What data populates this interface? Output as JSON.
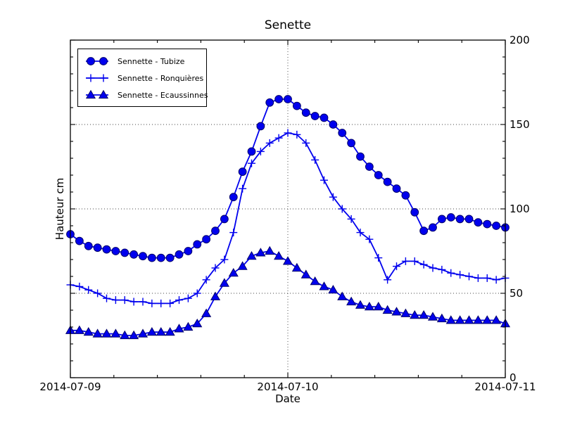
{
  "chart_data": {
    "type": "line",
    "title": "Senette",
    "xlabel": "Date",
    "ylabel": "Hauteur cm",
    "x_tick_labels": [
      "2014-07-09",
      "2014-07-10",
      "2014-07-11"
    ],
    "y_tick_labels": [
      "0",
      "50",
      "100",
      "150",
      "200"
    ],
    "y_tick_values": [
      0,
      50,
      100,
      150,
      200
    ],
    "ylim": [
      0,
      200
    ],
    "x_range": [
      "2014-07-09",
      "2014-07-11"
    ],
    "x_step_hours": 1,
    "grid": {
      "style": "dotted",
      "horizontal_major_values": [
        50,
        100,
        150
      ],
      "vertical_major_at": "2014-07-10"
    },
    "legend_position": "upper-left",
    "series_color": "#0000ee",
    "marker_edge_color": "#00006a",
    "series": [
      {
        "name": "Sennette - Tubize",
        "marker": "circle",
        "values": [
          85,
          81,
          78,
          77,
          76,
          75,
          74,
          73,
          72,
          71,
          71,
          71,
          73,
          75,
          79,
          82,
          87,
          94,
          107,
          122,
          134,
          149,
          163,
          165,
          165,
          161,
          157,
          155,
          154,
          150,
          145,
          139,
          131,
          125,
          120,
          116,
          112,
          108,
          98,
          87,
          89,
          94,
          95,
          94,
          94,
          92,
          91,
          90,
          89
        ]
      },
      {
        "name": "Sennette - Ronquières",
        "marker": "plus",
        "values": [
          55,
          54,
          52,
          50,
          47,
          46,
          46,
          45,
          45,
          44,
          44,
          44,
          46,
          47,
          50,
          58,
          65,
          70,
          86,
          112,
          127,
          134,
          139,
          142,
          145,
          144,
          139,
          129,
          117,
          107,
          100,
          94,
          86,
          82,
          71,
          58,
          66,
          69,
          69,
          67,
          65,
          64,
          62,
          61,
          60,
          59,
          59,
          58,
          59
        ]
      },
      {
        "name": "Sennette - Ecaussinnes",
        "marker": "triangle-up",
        "values": [
          28,
          28,
          27,
          26,
          26,
          26,
          25,
          25,
          26,
          27,
          27,
          27,
          29,
          30,
          32,
          38,
          48,
          56,
          62,
          66,
          72,
          74,
          75,
          72,
          69,
          65,
          61,
          57,
          54,
          52,
          48,
          45,
          43,
          42,
          42,
          40,
          39,
          38,
          37,
          37,
          36,
          35,
          34,
          34,
          34,
          34,
          34,
          34,
          32
        ]
      }
    ]
  }
}
